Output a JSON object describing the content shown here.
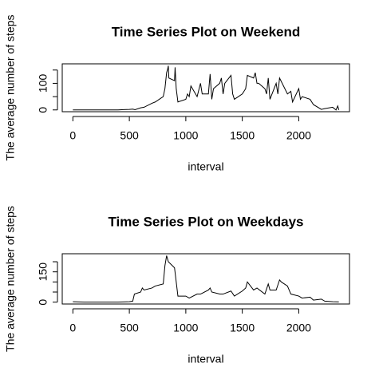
{
  "chart_data": [
    {
      "type": "line",
      "title": "Time Series Plot on Weekend",
      "xlabel": "interval",
      "ylabel": "The average number of steps",
      "color": "#000000",
      "x": [
        0,
        100,
        200,
        300,
        400,
        450,
        500,
        530,
        550,
        600,
        630,
        700,
        730,
        800,
        815,
        830,
        840,
        845,
        850,
        900,
        905,
        915,
        930,
        1000,
        1015,
        1030,
        1045,
        1100,
        1130,
        1145,
        1200,
        1215,
        1230,
        1245,
        1300,
        1315,
        1330,
        1345,
        1400,
        1415,
        1430,
        1500,
        1530,
        1545,
        1600,
        1615,
        1630,
        1645,
        1700,
        1715,
        1730,
        1745,
        1800,
        1815,
        1830,
        1900,
        1930,
        1945,
        2000,
        2015,
        2030,
        2100,
        2130,
        2200,
        2230,
        2300,
        2330,
        2345,
        2355
      ],
      "values": [
        0,
        0,
        0,
        0,
        0,
        1,
        2,
        3,
        1,
        8,
        10,
        25,
        30,
        50,
        80,
        140,
        155,
        166,
        120,
        110,
        160,
        80,
        30,
        40,
        60,
        50,
        90,
        50,
        100,
        60,
        60,
        135,
        40,
        80,
        100,
        120,
        60,
        100,
        130,
        60,
        40,
        60,
        80,
        130,
        120,
        140,
        100,
        100,
        80,
        60,
        120,
        40,
        100,
        60,
        120,
        60,
        70,
        30,
        80,
        40,
        50,
        40,
        20,
        2,
        5,
        10,
        0,
        15,
        0
      ],
      "xlim": [
        -94.2,
        2449.2
      ],
      "xticks": [
        0,
        500,
        1000,
        1500,
        2000
      ],
      "ylim": [
        -6.7,
        173.3
      ],
      "yticks": [
        0,
        {
          "value": 50,
          "label": null
        },
        100,
        {
          "value": 150,
          "label": null
        }
      ]
    },
    {
      "type": "line",
      "title": "Time Series Plot on Weekdays",
      "xlabel": "interval",
      "ylabel": "The average number of steps",
      "color": "#000000",
      "x": [
        0,
        100,
        200,
        300,
        400,
        500,
        530,
        545,
        600,
        615,
        630,
        700,
        730,
        800,
        815,
        830,
        845,
        900,
        915,
        930,
        1000,
        1030,
        1100,
        1130,
        1200,
        1215,
        1230,
        1300,
        1330,
        1400,
        1430,
        1500,
        1530,
        1545,
        1600,
        1630,
        1700,
        1730,
        1745,
        1800,
        1830,
        1845,
        1900,
        1930,
        2000,
        2030,
        2100,
        2130,
        2200,
        2230,
        2300,
        2355
      ],
      "values": [
        2,
        0,
        0,
        0,
        0,
        2,
        5,
        40,
        50,
        70,
        60,
        70,
        80,
        90,
        180,
        230,
        200,
        170,
        100,
        30,
        30,
        20,
        40,
        40,
        60,
        70,
        50,
        40,
        40,
        55,
        30,
        55,
        70,
        100,
        60,
        70,
        40,
        90,
        60,
        60,
        110,
        100,
        80,
        40,
        30,
        20,
        25,
        10,
        15,
        5,
        2,
        1
      ],
      "xlim": [
        -94.2,
        2449.2
      ],
      "xticks": [
        0,
        500,
        1000,
        1500,
        2000
      ],
      "ylim": [
        -9.2,
        239.6
      ],
      "yticks": [
        0,
        {
          "value": 50,
          "label": null
        },
        {
          "value": 100,
          "label": null
        },
        150,
        {
          "value": 200,
          "label": null
        }
      ]
    }
  ]
}
